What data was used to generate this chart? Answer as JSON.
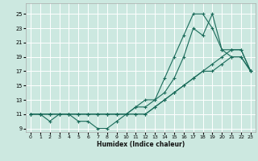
{
  "xlabel": "Humidex (Indice chaleur)",
  "xlim": [
    -0.5,
    23.5
  ],
  "ylim": [
    8.5,
    26.5
  ],
  "xticks": [
    0,
    1,
    2,
    3,
    4,
    5,
    6,
    7,
    8,
    9,
    10,
    11,
    12,
    13,
    14,
    15,
    16,
    17,
    18,
    19,
    20,
    21,
    22,
    23
  ],
  "yticks": [
    9,
    11,
    13,
    15,
    17,
    19,
    21,
    23,
    25
  ],
  "background_color": "#cce8e0",
  "grid_color": "#ffffff",
  "line_color": "#1a6b5a",
  "curves": [
    {
      "x": [
        0,
        1,
        2,
        3,
        4,
        5,
        6,
        7,
        8,
        9,
        10,
        11,
        12,
        13,
        14,
        15,
        16,
        17,
        18,
        19,
        20,
        21,
        22,
        23
      ],
      "y": [
        11,
        11,
        10,
        11,
        11,
        10,
        10,
        9,
        9,
        10,
        11,
        12,
        13,
        13,
        16,
        19,
        22,
        25,
        25,
        23,
        20,
        19,
        19,
        17
      ]
    },
    {
      "x": [
        0,
        1,
        2,
        3,
        4,
        5,
        6,
        7,
        8,
        9,
        10,
        11,
        12,
        13,
        14,
        15,
        16,
        17,
        18,
        19,
        20,
        21,
        22,
        23
      ],
      "y": [
        11,
        11,
        11,
        11,
        11,
        11,
        11,
        11,
        11,
        11,
        11,
        11,
        11,
        12,
        13,
        14,
        15,
        16,
        17,
        17,
        18,
        19,
        19,
        17
      ]
    },
    {
      "x": [
        0,
        1,
        2,
        3,
        4,
        5,
        6,
        7,
        8,
        9,
        10,
        11,
        12,
        13,
        14,
        15,
        16,
        17,
        18,
        19,
        20,
        21,
        22,
        23
      ],
      "y": [
        11,
        11,
        11,
        11,
        11,
        11,
        11,
        11,
        11,
        11,
        11,
        11,
        11,
        12,
        13,
        14,
        15,
        16,
        17,
        18,
        19,
        20,
        20,
        17
      ]
    },
    {
      "x": [
        0,
        1,
        2,
        3,
        4,
        5,
        6,
        7,
        8,
        9,
        10,
        11,
        12,
        13,
        14,
        15,
        16,
        17,
        18,
        19,
        20,
        21,
        22,
        23
      ],
      "y": [
        11,
        11,
        11,
        11,
        11,
        11,
        11,
        11,
        11,
        11,
        11,
        12,
        12,
        13,
        14,
        16,
        19,
        23,
        22,
        25,
        20,
        20,
        20,
        17
      ]
    }
  ]
}
